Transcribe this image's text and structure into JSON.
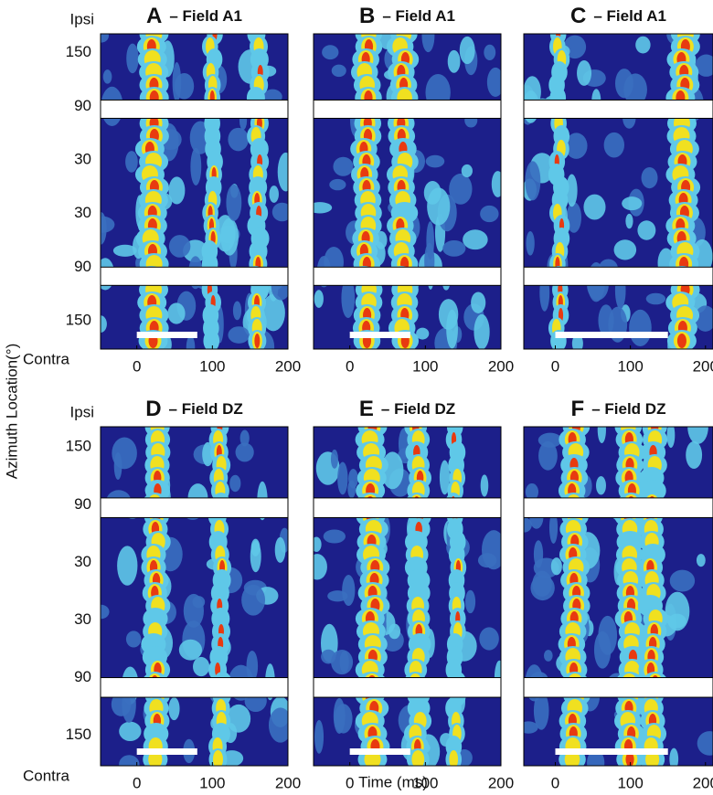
{
  "figure": {
    "xlabel": "Time (ms)",
    "ylabel": "Azimuth Location(°)",
    "yticklabels": [
      "Ipsi",
      "150",
      "90",
      "30",
      "30",
      "90",
      "150",
      "Contra"
    ]
  },
  "chart_data": [
    {
      "type": "heatmap",
      "panel": "A",
      "title": "– Field  A1",
      "xlim": [
        -48,
        200
      ],
      "xticks": [
        0,
        100,
        200
      ],
      "stimulus": [
        0,
        80
      ]
    },
    {
      "type": "heatmap",
      "panel": "B",
      "title": "– Field  A1",
      "xlim": [
        -48,
        200
      ],
      "xticks": [
        0,
        100,
        200
      ],
      "stimulus": [
        0,
        80
      ]
    },
    {
      "type": "heatmap",
      "panel": "C",
      "title": "– Field  A1",
      "xlim": [
        -42,
        210
      ],
      "xticks": [
        0,
        100,
        200
      ],
      "stimulus": [
        0,
        150
      ]
    },
    {
      "type": "heatmap",
      "panel": "D",
      "title": "– Field  DZ",
      "xlim": [
        -48,
        200
      ],
      "xticks": [
        0,
        100,
        200
      ],
      "stimulus": [
        0,
        80
      ]
    },
    {
      "type": "heatmap",
      "panel": "E",
      "title": "– Field  DZ",
      "xlim": [
        -48,
        200
      ],
      "xticks": [
        0,
        100,
        200
      ],
      "stimulus": [
        0,
        80
      ]
    },
    {
      "type": "heatmap",
      "panel": "F",
      "title": "– Field  DZ",
      "xlim": [
        -42,
        210
      ],
      "xticks": [
        0,
        100,
        200
      ],
      "stimulus": [
        0,
        150
      ]
    }
  ]
}
